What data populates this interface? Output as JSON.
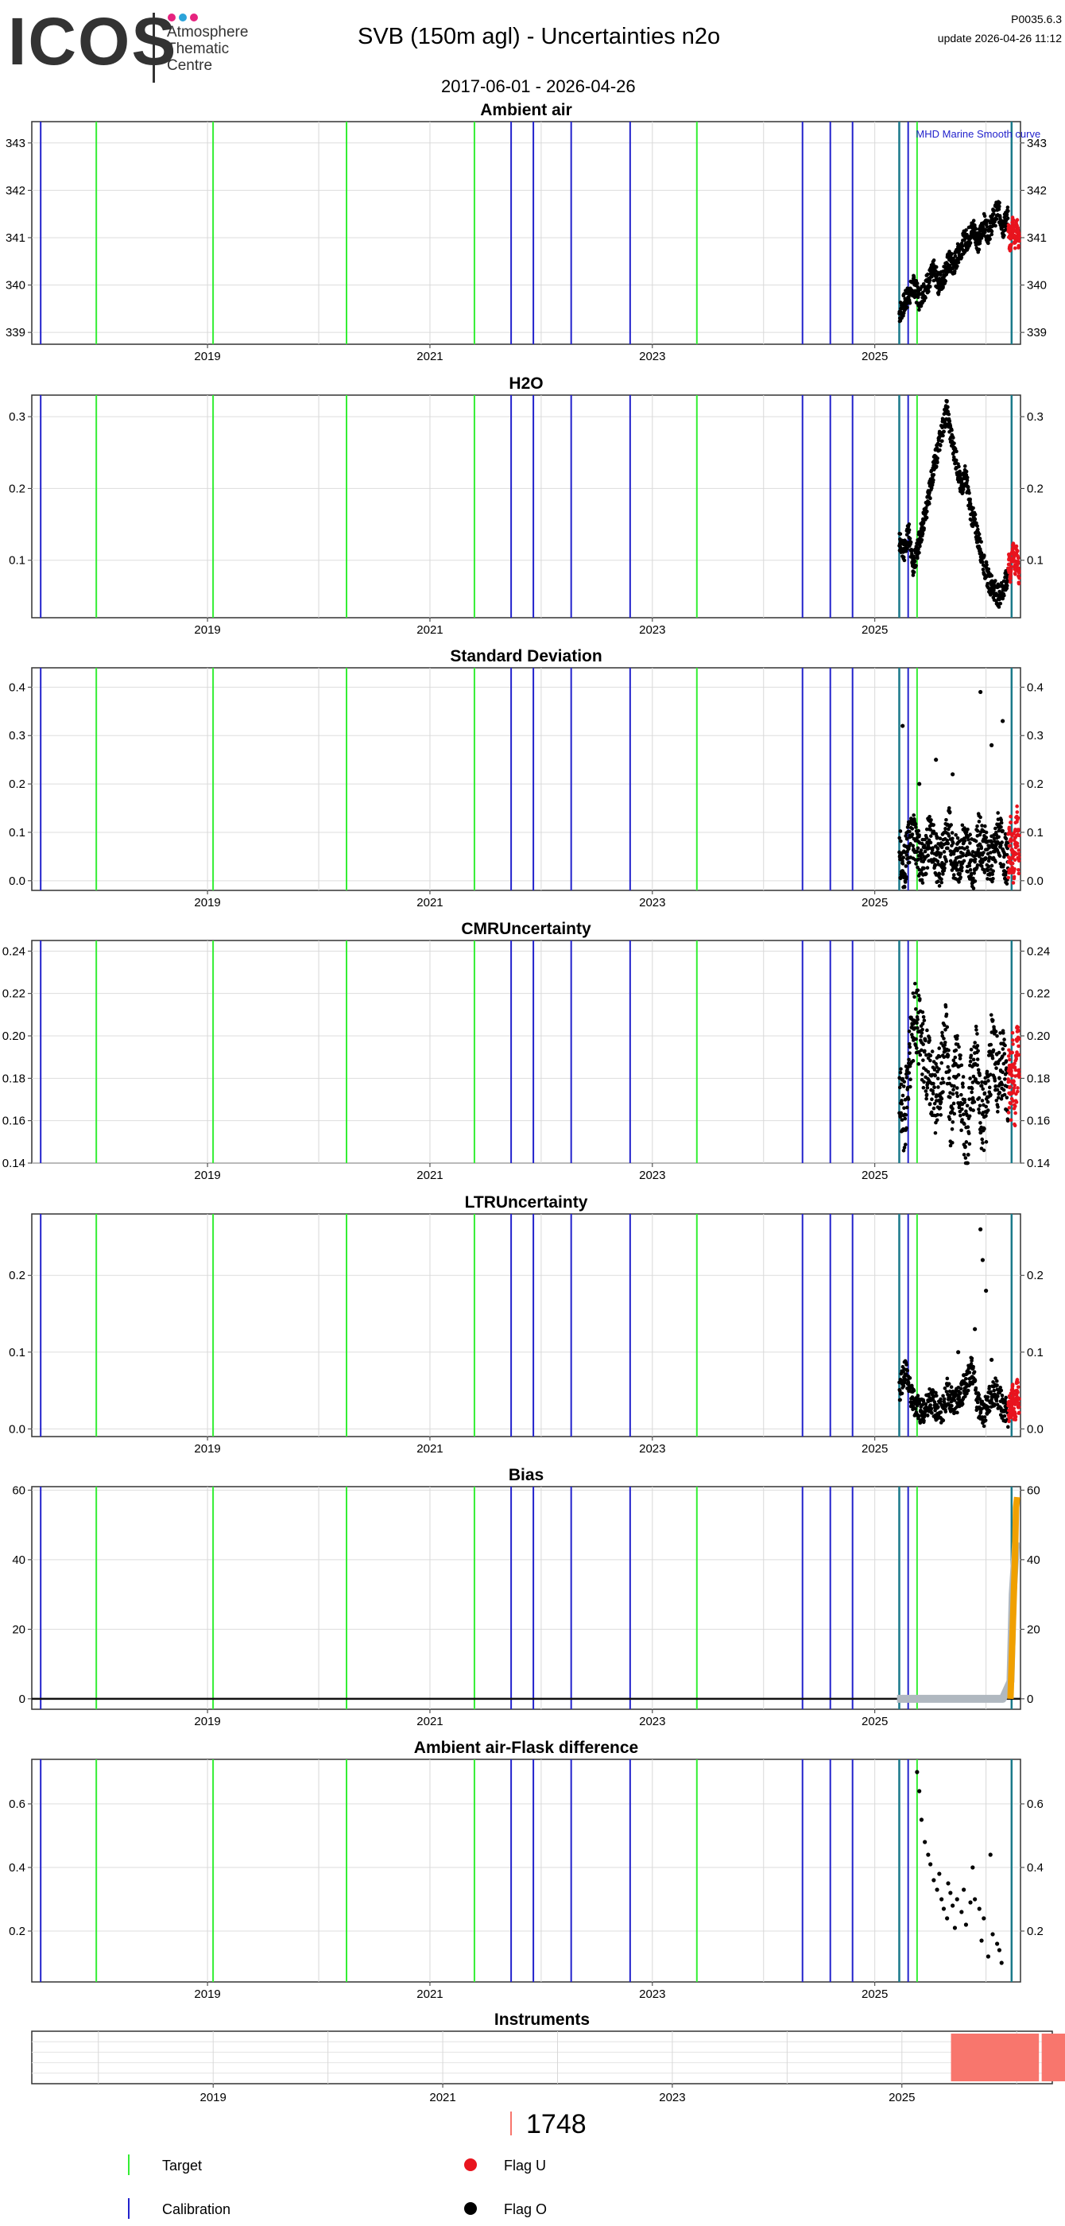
{
  "header": {
    "logo": "ICOS",
    "logo_sub": [
      "Atmosphere",
      "Thematic",
      "Centre"
    ],
    "title": "SVB  (150m agl) - Uncertainties n2o",
    "date_range": "2017-06-01 - 2026-04-26",
    "version": "P0035.6.3",
    "update": "update  2026-04-26 11:12"
  },
  "colors": {
    "target": "#33ee33",
    "calibration": "#2222cc",
    "flag_u": "#e8141e",
    "flag_o": "#000000",
    "instrument": "#f8766d",
    "bias_orange": "#f0a000",
    "bias_grey": "#b0b8c0",
    "teal": "#1a7a8a"
  },
  "time_axis": {
    "xlim": [
      2017.42,
      2026.31
    ],
    "tick_labels": [
      "2019",
      "2021",
      "2023",
      "2025"
    ],
    "tick_values": [
      2019,
      2021,
      2023,
      2025
    ],
    "target_lines": [
      2018.0,
      2019.05,
      2020.25,
      2021.4,
      2023.4,
      2025.38
    ],
    "calibration_lines": [
      2017.5,
      2021.73,
      2021.93,
      2022.27,
      2022.8,
      2024.35,
      2024.6,
      2024.8,
      2025.22,
      2025.3
    ],
    "teal_lines": [
      2025.22,
      2026.23
    ]
  },
  "chart_data": [
    {
      "type": "scatter",
      "title": "Ambient air",
      "ylim": [
        338.75,
        343.45
      ],
      "yticks": [
        339,
        340,
        341,
        342,
        343
      ],
      "annotation": "MHD Marine Smooth curve",
      "series": [
        {
          "name": "Flag O",
          "x_range": [
            2025.22,
            2026.2
          ],
          "y": [
            339.4,
            339.6,
            339.8,
            340.0,
            339.7,
            339.9,
            340.1,
            340.3,
            340.0,
            340.2,
            340.5,
            340.4,
            340.7,
            340.9,
            341.0,
            341.2,
            340.9,
            341.3,
            341.1,
            341.4,
            341.6,
            341.2,
            341.5
          ]
        },
        {
          "name": "Flag U",
          "x_range": [
            2026.2,
            2026.3
          ],
          "y": [
            341.1,
            340.9,
            341.3,
            341.0,
            341.2,
            340.8
          ]
        }
      ],
      "legend": "none",
      "grid": true
    },
    {
      "type": "scatter",
      "title": "H2O",
      "ylim": [
        0.02,
        0.33
      ],
      "yticks": [
        0.1,
        0.2,
        0.3
      ],
      "series": [
        {
          "name": "Flag O",
          "x_range": [
            2025.22,
            2026.2
          ],
          "y": [
            0.13,
            0.11,
            0.14,
            0.09,
            0.12,
            0.15,
            0.18,
            0.22,
            0.25,
            0.28,
            0.31,
            0.27,
            0.24,
            0.2,
            0.22,
            0.17,
            0.15,
            0.12,
            0.09,
            0.07,
            0.06,
            0.05,
            0.06,
            0.08
          ]
        },
        {
          "name": "Flag U",
          "x_range": [
            2026.2,
            2026.3
          ],
          "y": [
            0.1,
            0.08,
            0.12,
            0.09,
            0.11,
            0.07
          ]
        }
      ],
      "legend": "none",
      "grid": true
    },
    {
      "type": "scatter",
      "title": "Standard Deviation",
      "ylim": [
        -0.02,
        0.44
      ],
      "yticks": [
        0.0,
        0.1,
        0.2,
        0.3,
        0.4
      ],
      "series": [
        {
          "name": "Flag O",
          "x_range": [
            2025.22,
            2026.2
          ],
          "y": [
            0.06,
            0.03,
            0.08,
            0.1,
            0.05,
            0.04,
            0.09,
            0.07,
            0.03,
            0.06,
            0.11,
            0.05,
            0.04,
            0.08,
            0.06,
            0.03,
            0.09,
            0.07,
            0.05,
            0.04,
            0.1,
            0.06,
            0.03
          ]
        },
        {
          "name": "Flag O outliers",
          "x": [
            2025.25,
            2025.55,
            2025.95,
            2026.05,
            2026.15,
            2025.7,
            2025.4
          ],
          "y": [
            0.32,
            0.25,
            0.39,
            0.28,
            0.33,
            0.22,
            0.2
          ]
        },
        {
          "name": "Flag U",
          "x_range": [
            2026.2,
            2026.3
          ],
          "y": [
            0.05,
            0.09,
            0.03,
            0.07,
            0.11,
            0.04
          ]
        }
      ],
      "legend": "none",
      "grid": true
    },
    {
      "type": "scatter",
      "title": "CMRUncertainty",
      "ylim": [
        0.14,
        0.245
      ],
      "yticks": [
        0.14,
        0.16,
        0.18,
        0.2,
        0.22,
        0.24
      ],
      "series": [
        {
          "name": "Flag O",
          "x_range": [
            2025.22,
            2026.2
          ],
          "y": [
            0.17,
            0.16,
            0.19,
            0.21,
            0.2,
            0.19,
            0.18,
            0.17,
            0.18,
            0.2,
            0.16,
            0.19,
            0.17,
            0.15,
            0.18,
            0.19,
            0.16,
            0.17,
            0.2,
            0.18,
            0.19,
            0.17
          ]
        },
        {
          "name": "Flag U",
          "x_range": [
            2026.2,
            2026.3
          ],
          "y": [
            0.18,
            0.175,
            0.185,
            0.17,
            0.19,
            0.18
          ]
        }
      ],
      "legend": "none",
      "grid": true
    },
    {
      "type": "scatter",
      "title": "LTRUncertainty",
      "ylim": [
        -0.01,
        0.28
      ],
      "yticks": [
        0.0,
        0.1,
        0.2
      ],
      "series": [
        {
          "name": "Flag O",
          "x_range": [
            2025.22,
            2026.2
          ],
          "y": [
            0.05,
            0.08,
            0.04,
            0.03,
            0.02,
            0.04,
            0.03,
            0.02,
            0.05,
            0.03,
            0.04,
            0.06,
            0.08,
            0.03,
            0.02,
            0.04,
            0.05,
            0.03,
            0.02
          ]
        },
        {
          "name": "Flag O peaks",
          "x": [
            2025.95,
            2025.97,
            2026.0,
            2025.9,
            2026.05,
            2025.75,
            2025.8
          ],
          "y": [
            0.26,
            0.22,
            0.18,
            0.13,
            0.09,
            0.1,
            0.07
          ]
        },
        {
          "name": "Flag U",
          "x_range": [
            2026.2,
            2026.3
          ],
          "y": [
            0.02,
            0.03,
            0.04,
            0.02,
            0.05,
            0.03
          ]
        }
      ],
      "legend": "none",
      "grid": true
    },
    {
      "type": "line",
      "title": "Bias",
      "ylim": [
        -3,
        61
      ],
      "yticks": [
        0,
        20,
        40,
        60
      ],
      "series": [
        {
          "name": "grey band",
          "x": [
            2025.2,
            2026.05,
            2026.15,
            2026.22,
            2026.24,
            2026.27
          ],
          "y": [
            0,
            0,
            0,
            5,
            30,
            45
          ]
        },
        {
          "name": "orange",
          "x": [
            2026.22,
            2026.24,
            2026.26,
            2026.27,
            2026.28
          ],
          "y": [
            0,
            20,
            40,
            55,
            58
          ]
        }
      ],
      "legend": "none",
      "grid": true
    },
    {
      "type": "scatter",
      "title": "Ambient air-Flask difference",
      "ylim": [
        0.04,
        0.74
      ],
      "yticks": [
        0.2,
        0.4,
        0.6
      ],
      "series": [
        {
          "name": "Flag O",
          "x": [
            2025.38,
            2025.4,
            2025.42,
            2025.45,
            2025.48,
            2025.5,
            2025.53,
            2025.56,
            2025.6,
            2025.62,
            2025.65,
            2025.68,
            2025.7,
            2025.74,
            2025.78,
            2025.82,
            2025.86,
            2025.9,
            2025.94,
            2025.98,
            2026.02,
            2026.06,
            2026.1,
            2026.14,
            2025.58,
            2025.66,
            2025.72,
            2025.8,
            2025.88,
            2025.96,
            2026.04,
            2026.12
          ],
          "y": [
            0.7,
            0.64,
            0.55,
            0.48,
            0.44,
            0.41,
            0.36,
            0.33,
            0.3,
            0.27,
            0.24,
            0.32,
            0.28,
            0.3,
            0.26,
            0.22,
            0.29,
            0.3,
            0.27,
            0.24,
            0.12,
            0.19,
            0.16,
            0.1,
            0.38,
            0.35,
            0.21,
            0.33,
            0.4,
            0.17,
            0.44,
            0.14
          ]
        }
      ],
      "legend": "none",
      "grid": true
    },
    {
      "type": "bar",
      "title": "Instruments",
      "instrument_blocks": [
        [
          2025.22,
          2026.0
        ],
        [
          2026.01,
          2026.3
        ]
      ],
      "label": "1748",
      "legend": "none",
      "grid": true
    }
  ],
  "legend": {
    "target": "Target",
    "calibration": "Calibration",
    "flag_u": "Flag U",
    "flag_o": "Flag O",
    "instrument_id": "1748"
  }
}
